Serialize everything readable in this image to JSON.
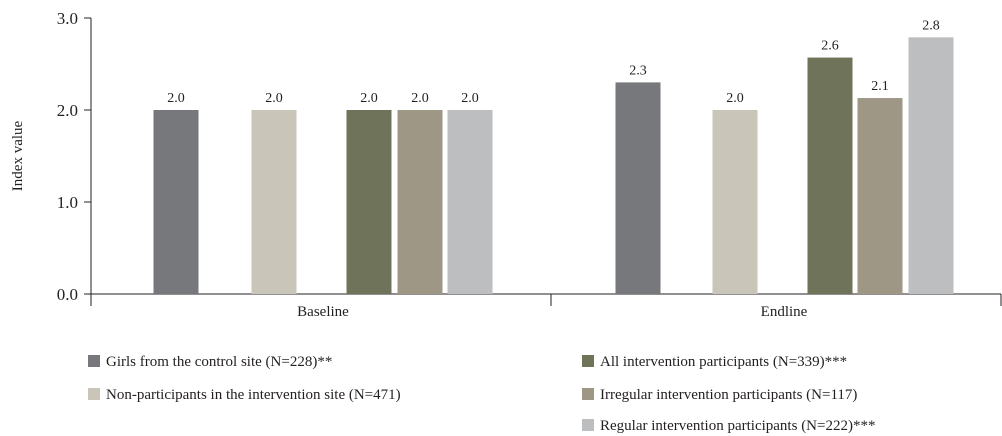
{
  "chart_data": {
    "type": "bar",
    "title": "",
    "xlabel": "",
    "ylabel": "Index value",
    "ylim": [
      0,
      3.0
    ],
    "yticks": [
      "0.0",
      "1.0",
      "2.0",
      "3.0"
    ],
    "categories": [
      "Baseline",
      "Endline"
    ],
    "series": [
      {
        "name": "Girls from the control site (N=228)**",
        "color": "#77787b",
        "values": [
          2.0,
          2.3
        ],
        "labels": [
          "2.0",
          "2.3"
        ]
      },
      {
        "name": "Non-participants in the intervention site (N=471)",
        "color": "#c9c5b9",
        "values": [
          2.0,
          2.0
        ],
        "labels": [
          "2.0",
          "2.0"
        ]
      },
      {
        "name": "All intervention participants (N=339)***",
        "color": "#6e735a",
        "values": [
          2.0,
          2.57
        ],
        "labels": [
          "2.0",
          "2.6"
        ]
      },
      {
        "name": "Irregular intervention participants (N=117)",
        "color": "#9e9785",
        "values": [
          2.0,
          2.13
        ],
        "labels": [
          "2.0",
          "2.1"
        ]
      },
      {
        "name": "Regular intervention participants (N=222)***",
        "color": "#bcbec0",
        "values": [
          2.0,
          2.79
        ],
        "labels": [
          "2.0",
          "2.8"
        ]
      }
    ],
    "grid": false,
    "legend_position": "bottom"
  }
}
